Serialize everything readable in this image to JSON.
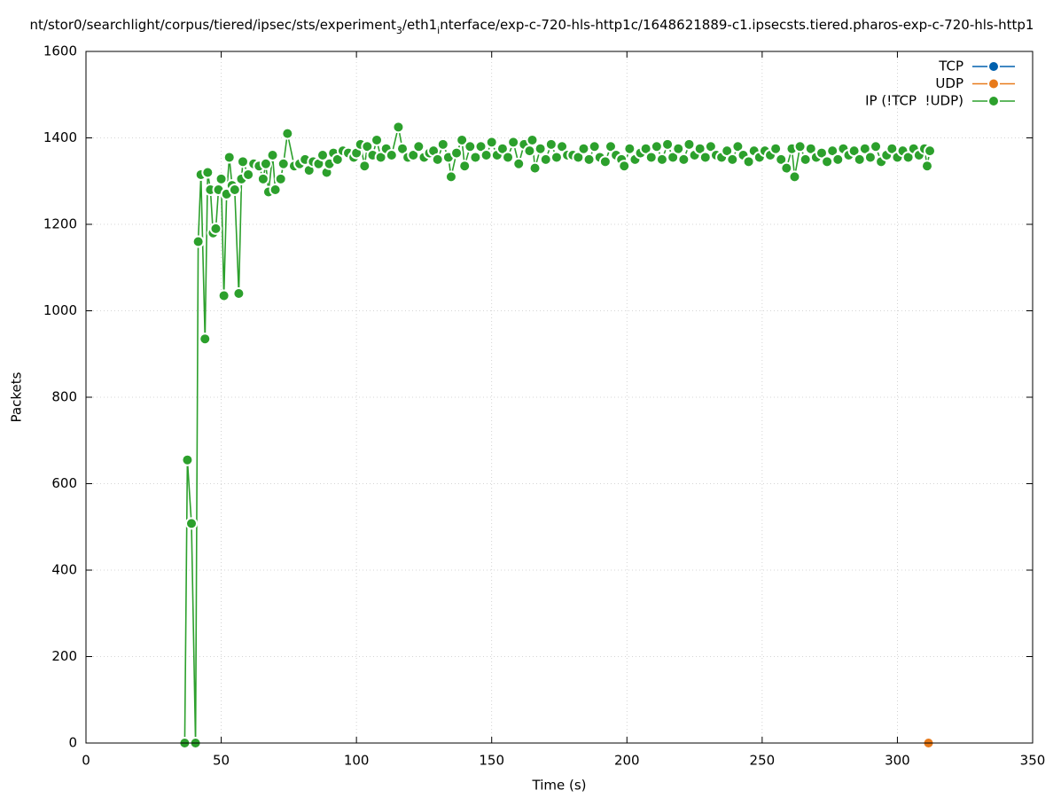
{
  "chart_data": {
    "type": "line",
    "title": [
      "nt/stor0/searchlight/corpus/tiered/ipsec/sts/experiment",
      "3",
      "/eth1",
      "i",
      "nterface/exp-c-720-hls-http1c/1648621889-c1.ipsecsts.tiered.pharos-exp-c-720-hls-http1"
    ],
    "xlabel": "Time (s)",
    "ylabel": "Packets",
    "xlim": [
      0,
      350
    ],
    "xticks": [
      0,
      50,
      100,
      150,
      200,
      250,
      300,
      350
    ],
    "ylim": [
      0,
      1600
    ],
    "yticks": [
      0,
      200,
      400,
      600,
      800,
      1000,
      1200,
      1400,
      1600
    ],
    "grid": true,
    "legend": "top-right",
    "series": [
      {
        "name": "TCP",
        "color": "#0060ad",
        "x": [
          311
        ],
        "values": [
          0
        ]
      },
      {
        "name": "UDP",
        "color": "#e87a1a",
        "x": [
          311.5
        ],
        "values": [
          0
        ]
      },
      {
        "name": "IP (!TCP  !UDP)",
        "color": "#2ca02c",
        "x": [
          36.5,
          37.5,
          39,
          40.5,
          41.5,
          42.5,
          44,
          45,
          46,
          47,
          48,
          49,
          50,
          51,
          52,
          53,
          54,
          55,
          56.5,
          57.5,
          58,
          60,
          62,
          64,
          65.5,
          66.5,
          67.5,
          69,
          70,
          72,
          73,
          74.5,
          77,
          79,
          81,
          82.5,
          84,
          86,
          87.5,
          89,
          90,
          91.5,
          93,
          95,
          97,
          99,
          100,
          101.5,
          103,
          104,
          106,
          107.5,
          109,
          111,
          113,
          115.5,
          117,
          119,
          121,
          123,
          125,
          127,
          128.5,
          130,
          132,
          134,
          135,
          137,
          139,
          140,
          142,
          144,
          146,
          148,
          150,
          152,
          154,
          156,
          158,
          160,
          162,
          164,
          165,
          166,
          168,
          170,
          172,
          174,
          176,
          178,
          180,
          182,
          184,
          186,
          188,
          190,
          192,
          194,
          196,
          198,
          199,
          201,
          203,
          205,
          207,
          209,
          211,
          213,
          215,
          217,
          219,
          221,
          223,
          225,
          227,
          229,
          231,
          233,
          235,
          237,
          239,
          241,
          243,
          245,
          247,
          249,
          251,
          253,
          255,
          257,
          259,
          261,
          262,
          264,
          266,
          268,
          270,
          272,
          274,
          276,
          278,
          280,
          282,
          284,
          286,
          288,
          290,
          292,
          294,
          296,
          298,
          300,
          302,
          304,
          306,
          308,
          310,
          311,
          312
        ],
        "values": [
          0,
          655,
          508,
          0,
          1160,
          1315,
          935,
          1320,
          1280,
          1180,
          1190,
          1280,
          1305,
          1035,
          1270,
          1355,
          1290,
          1280,
          1040,
          1305,
          1345,
          1315,
          1340,
          1335,
          1305,
          1340,
          1275,
          1360,
          1280,
          1305,
          1340,
          1410,
          1335,
          1340,
          1350,
          1325,
          1345,
          1340,
          1360,
          1320,
          1340,
          1365,
          1350,
          1370,
          1365,
          1355,
          1365,
          1385,
          1335,
          1380,
          1360,
          1395,
          1355,
          1375,
          1360,
          1425,
          1375,
          1355,
          1360,
          1380,
          1355,
          1365,
          1370,
          1350,
          1385,
          1355,
          1310,
          1365,
          1395,
          1335,
          1380,
          1355,
          1380,
          1360,
          1390,
          1360,
          1375,
          1355,
          1390,
          1340,
          1385,
          1370,
          1395,
          1330,
          1375,
          1350,
          1385,
          1355,
          1380,
          1360,
          1360,
          1355,
          1375,
          1350,
          1380,
          1355,
          1345,
          1380,
          1360,
          1350,
          1335,
          1375,
          1350,
          1365,
          1375,
          1355,
          1380,
          1350,
          1385,
          1355,
          1375,
          1350,
          1385,
          1360,
          1375,
          1355,
          1380,
          1360,
          1355,
          1370,
          1350,
          1380,
          1360,
          1345,
          1370,
          1355,
          1370,
          1360,
          1375,
          1350,
          1330,
          1375,
          1310,
          1380,
          1350,
          1375,
          1355,
          1365,
          1345,
          1370,
          1350,
          1375,
          1360,
          1370,
          1350,
          1375,
          1355,
          1380,
          1345,
          1360,
          1375,
          1355,
          1370,
          1355,
          1375,
          1360,
          1375,
          1335,
          1370
        ]
      }
    ]
  }
}
